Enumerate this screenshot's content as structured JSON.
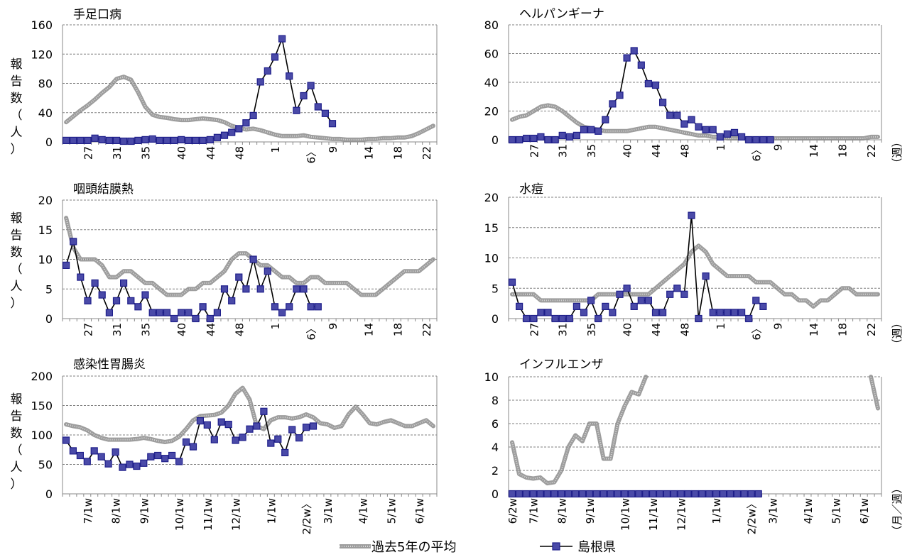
{
  "colors": {
    "shimane": "#1f1f8a",
    "shimane_fill": "#4a4aa8",
    "avg": "#8c8c8c",
    "grid": "#7f7f7f",
    "axis": "#888888"
  },
  "side_labels": {
    "report_chars": [
      "報",
      "告",
      "数",
      "（",
      "人",
      "）"
    ],
    "week_unit": "（週）",
    "month_week_unit": "（月／週）"
  },
  "legend": {
    "avg_label": "過去5年の平均",
    "shimane_label": "島根県"
  },
  "chart_data": [
    {
      "type": "line",
      "title": "手足口病",
      "ylim": [
        0,
        160
      ],
      "yticks": [
        0,
        40,
        80,
        120,
        160
      ],
      "x_count": 52,
      "xticks": [
        {
          "i": 3,
          "label": "27"
        },
        {
          "i": 7,
          "label": "31"
        },
        {
          "i": 11,
          "label": "35"
        },
        {
          "i": 16,
          "label": "40"
        },
        {
          "i": 20,
          "label": "44"
        },
        {
          "i": 24,
          "label": "48"
        },
        {
          "i": 29,
          "label": "1"
        },
        {
          "i": 34,
          "label": "6〉"
        },
        {
          "i": 37,
          "label": "9"
        },
        {
          "i": 42,
          "label": "14"
        },
        {
          "i": 46,
          "label": "18"
        },
        {
          "i": 50,
          "label": "22"
        }
      ],
      "series": [
        {
          "name": "過去5年の平均",
          "style": "avg",
          "values": [
            27,
            35,
            43,
            50,
            58,
            67,
            75,
            86,
            89,
            85,
            68,
            48,
            37,
            34,
            33,
            31,
            30,
            30,
            31,
            32,
            31,
            30,
            27,
            22,
            19,
            17,
            18,
            16,
            13,
            10,
            8,
            8,
            8,
            9,
            7,
            6,
            5,
            4,
            4,
            3,
            3,
            3,
            4,
            4,
            5,
            5,
            6,
            6,
            8,
            12,
            17,
            22
          ]
        },
        {
          "name": "島根県",
          "style": "shimane",
          "values": [
            2,
            2,
            2,
            2,
            5,
            3,
            2,
            2,
            1,
            1,
            2,
            3,
            4,
            2,
            2,
            2,
            3,
            2,
            2,
            2,
            3,
            6,
            9,
            13,
            18,
            26,
            36,
            82,
            97,
            116,
            141,
            90,
            43,
            63,
            77,
            48,
            39,
            25
          ]
        }
      ]
    },
    {
      "type": "line",
      "title": "ヘルパンギーナ",
      "ylim": [
        0,
        80
      ],
      "yticks": [
        0,
        20,
        40,
        60,
        80
      ],
      "x_count": 52,
      "xticks": [
        {
          "i": 3,
          "label": "27"
        },
        {
          "i": 7,
          "label": "31"
        },
        {
          "i": 11,
          "label": "35"
        },
        {
          "i": 16,
          "label": "40"
        },
        {
          "i": 20,
          "label": "44"
        },
        {
          "i": 24,
          "label": "48"
        },
        {
          "i": 29,
          "label": "1"
        },
        {
          "i": 34,
          "label": "6〉"
        },
        {
          "i": 37,
          "label": "9"
        },
        {
          "i": 42,
          "label": "14"
        },
        {
          "i": 46,
          "label": "18"
        },
        {
          "i": 50,
          "label": "22"
        }
      ],
      "series": [
        {
          "name": "過去5年の平均",
          "style": "avg",
          "values": [
            14,
            16,
            17,
            20,
            23,
            24,
            23,
            20,
            16,
            12,
            9,
            8,
            7,
            6,
            6,
            6,
            6,
            7,
            8,
            9,
            9,
            8,
            7,
            6,
            5,
            4,
            3,
            3,
            2,
            2,
            1,
            1,
            1,
            1,
            1,
            1,
            1,
            1,
            1,
            1,
            1,
            1,
            1,
            1,
            1,
            1,
            1,
            1,
            1,
            1,
            2,
            2
          ]
        },
        {
          "name": "島根県",
          "style": "shimane",
          "values": [
            0,
            0,
            1,
            1,
            2,
            0,
            0,
            3,
            2,
            3,
            7,
            7,
            6,
            14,
            25,
            31,
            57,
            62,
            52,
            39,
            38,
            26,
            17,
            17,
            11,
            14,
            9,
            7,
            7,
            2,
            4,
            5,
            2,
            0,
            0,
            0,
            0
          ]
        }
      ]
    },
    {
      "type": "line",
      "title": "咽頭結膜熱",
      "ylim": [
        0,
        20
      ],
      "yticks": [
        0,
        5,
        10,
        15,
        20
      ],
      "x_count": 52,
      "xticks": [
        {
          "i": 3,
          "label": "27"
        },
        {
          "i": 7,
          "label": "31"
        },
        {
          "i": 11,
          "label": "35"
        },
        {
          "i": 16,
          "label": "40"
        },
        {
          "i": 20,
          "label": "44"
        },
        {
          "i": 24,
          "label": "48"
        },
        {
          "i": 29,
          "label": "1"
        },
        {
          "i": 34,
          "label": "6〉"
        },
        {
          "i": 37,
          "label": "9"
        },
        {
          "i": 42,
          "label": "14"
        },
        {
          "i": 46,
          "label": "18"
        },
        {
          "i": 50,
          "label": "22"
        }
      ],
      "series": [
        {
          "name": "過去5年の平均",
          "style": "avg",
          "values": [
            17,
            12,
            10,
            10,
            10,
            9,
            7,
            7,
            8,
            8,
            7,
            6,
            6,
            5,
            4,
            4,
            4,
            5,
            5,
            6,
            6,
            7,
            8,
            10,
            11,
            11,
            10,
            9,
            9,
            8,
            7,
            7,
            6,
            6,
            7,
            7,
            6,
            6,
            6,
            6,
            5,
            4,
            4,
            4,
            5,
            6,
            7,
            8,
            8,
            8,
            9,
            10
          ]
        },
        {
          "name": "島根県",
          "style": "shimane",
          "values": [
            9,
            13,
            7,
            3,
            6,
            4,
            1,
            3,
            6,
            3,
            2,
            4,
            1,
            1,
            1,
            0,
            1,
            1,
            0,
            2,
            0,
            1,
            5,
            3,
            7,
            5,
            10,
            5,
            8,
            2,
            1,
            2,
            5,
            5,
            2,
            2
          ]
        }
      ]
    },
    {
      "type": "line",
      "title": "水痘",
      "ylim": [
        0,
        20
      ],
      "yticks": [
        0,
        5,
        10,
        15,
        20
      ],
      "x_count": 52,
      "xticks": [
        {
          "i": 3,
          "label": "27"
        },
        {
          "i": 7,
          "label": "31"
        },
        {
          "i": 11,
          "label": "35"
        },
        {
          "i": 16,
          "label": "40"
        },
        {
          "i": 20,
          "label": "44"
        },
        {
          "i": 24,
          "label": "48"
        },
        {
          "i": 29,
          "label": "1"
        },
        {
          "i": 34,
          "label": "6〉"
        },
        {
          "i": 37,
          "label": "9"
        },
        {
          "i": 42,
          "label": "14"
        },
        {
          "i": 46,
          "label": "18"
        },
        {
          "i": 50,
          "label": "22"
        }
      ],
      "series": [
        {
          "name": "過去5年の平均",
          "style": "avg",
          "values": [
            4,
            4,
            4,
            4,
            3,
            3,
            3,
            3,
            3,
            3,
            3,
            3,
            4,
            4,
            4,
            4,
            4,
            4,
            4,
            4,
            5,
            6,
            7,
            8,
            9,
            11,
            12,
            11,
            9,
            8,
            7,
            7,
            7,
            7,
            6,
            6,
            6,
            5,
            4,
            4,
            3,
            3,
            2,
            3,
            3,
            4,
            5,
            5,
            4,
            4,
            4,
            4
          ]
        },
        {
          "name": "島根県",
          "style": "shimane",
          "values": [
            6,
            2,
            0,
            0,
            1,
            1,
            0,
            0,
            0,
            2,
            1,
            3,
            0,
            2,
            1,
            4,
            5,
            2,
            3,
            3,
            1,
            1,
            4,
            5,
            4,
            17,
            0,
            7,
            1,
            1,
            1,
            1,
            1,
            0,
            3,
            2
          ]
        }
      ]
    },
    {
      "type": "line",
      "title": "感染性胃腸炎",
      "ylim": [
        0,
        200
      ],
      "yticks": [
        0,
        50,
        100,
        150,
        200
      ],
      "x_count": 53,
      "xticks": [
        {
          "i": 3,
          "label": "7/1w"
        },
        {
          "i": 7,
          "label": "8/1w"
        },
        {
          "i": 11,
          "label": "9/1w"
        },
        {
          "i": 16,
          "label": "10/1w"
        },
        {
          "i": 20,
          "label": "11/1w"
        },
        {
          "i": 24,
          "label": "12/1w"
        },
        {
          "i": 29,
          "label": "1/1w"
        },
        {
          "i": 34,
          "label": "2/2w〉"
        },
        {
          "i": 37,
          "label": "3/1w"
        },
        {
          "i": 42,
          "label": "4/1w"
        },
        {
          "i": 46,
          "label": "5/1w"
        },
        {
          "i": 50,
          "label": "6/1w"
        }
      ],
      "series": [
        {
          "name": "過去5年の平均",
          "style": "avg",
          "values": [
            118,
            115,
            113,
            108,
            100,
            95,
            92,
            92,
            92,
            92,
            93,
            95,
            93,
            90,
            88,
            90,
            97,
            110,
            125,
            132,
            133,
            134,
            138,
            150,
            170,
            180,
            160,
            115,
            110,
            125,
            130,
            130,
            128,
            130,
            135,
            130,
            120,
            118,
            112,
            115,
            135,
            148,
            135,
            120,
            118,
            122,
            125,
            120,
            115,
            115,
            120,
            125,
            115
          ]
        },
        {
          "name": "島根県",
          "style": "shimane",
          "values": [
            91,
            73,
            65,
            55,
            73,
            63,
            51,
            71,
            45,
            50,
            47,
            52,
            63,
            65,
            60,
            65,
            55,
            88,
            80,
            124,
            117,
            92,
            122,
            118,
            91,
            96,
            110,
            115,
            140,
            86,
            93,
            70,
            109,
            95,
            113,
            115
          ]
        }
      ]
    },
    {
      "type": "line",
      "title": "インフルエンザ",
      "ylim": [
        0,
        10
      ],
      "yticks": [
        0,
        2,
        4,
        6,
        8,
        10
      ],
      "x_count": 53,
      "xticks": [
        {
          "i": 0,
          "label": "6/2w"
        },
        {
          "i": 3,
          "label": "7/1w"
        },
        {
          "i": 7,
          "label": "8/1w"
        },
        {
          "i": 11,
          "label": "9/1w"
        },
        {
          "i": 16,
          "label": "10/1w"
        },
        {
          "i": 20,
          "label": "11/1w"
        },
        {
          "i": 24,
          "label": "12/1w"
        },
        {
          "i": 29,
          "label": "1/1w"
        },
        {
          "i": 34,
          "label": "2/2w〉"
        },
        {
          "i": 37,
          "label": "3/1w"
        },
        {
          "i": 42,
          "label": "4/1w"
        },
        {
          "i": 46,
          "label": "5/1w"
        },
        {
          "i": 50,
          "label": "6/1w"
        }
      ],
      "series": [
        {
          "name": "過去5年の平均",
          "style": "avg",
          "values": [
            4.4,
            1.7,
            1.4,
            1.3,
            1.4,
            0.9,
            1.0,
            2.0,
            4.0,
            5.0,
            4.5,
            6.0,
            6.0,
            3.0,
            3.0,
            6.0,
            7.5,
            8.7,
            8.5,
            10.0,
            null,
            null,
            null,
            null,
            null,
            null,
            null,
            null,
            null,
            null,
            null,
            null,
            null,
            null,
            null,
            null,
            null,
            null,
            null,
            null,
            null,
            null,
            null,
            null,
            null,
            null,
            null,
            null,
            null,
            null,
            null,
            10.0,
            7.3
          ]
        },
        {
          "name": "島根県",
          "style": "shimane",
          "values": [
            0,
            0,
            0,
            0,
            0,
            0,
            0,
            0,
            0,
            0,
            0,
            0,
            0,
            0,
            0,
            0,
            0,
            0,
            0,
            0,
            0,
            0,
            0,
            0,
            0,
            0,
            0,
            0,
            0,
            0,
            0,
            0,
            0,
            0,
            0,
            0
          ]
        }
      ]
    }
  ]
}
